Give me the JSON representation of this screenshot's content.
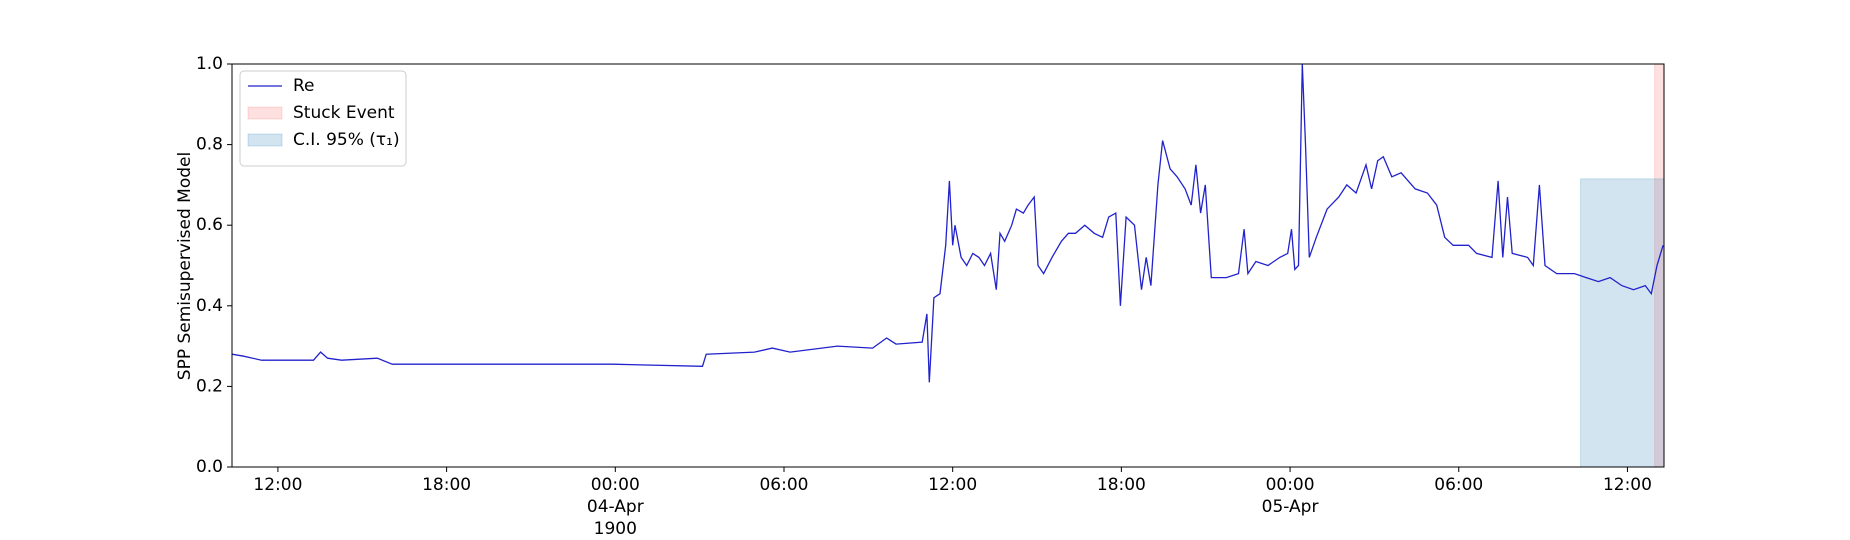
{
  "chart_data": {
    "type": "line",
    "ylabel": "SPP Semisupervised Model",
    "xlim": [
      "1900-04-03T10:22",
      "1900-04-05T13:18"
    ],
    "ylim": [
      0,
      1
    ],
    "xticks": [
      {
        "value": "1900-04-03T12:00",
        "label": "12:00"
      },
      {
        "value": "1900-04-03T18:00",
        "label": "18:00"
      },
      {
        "value": "1900-04-04T00:00",
        "label": "00:00\n04-Apr\n1900"
      },
      {
        "value": "1900-04-04T06:00",
        "label": "06:00"
      },
      {
        "value": "1900-04-04T12:00",
        "label": "12:00"
      },
      {
        "value": "1900-04-04T18:00",
        "label": "18:00"
      },
      {
        "value": "1900-04-05T00:00",
        "label": "00:00\n05-Apr"
      },
      {
        "value": "1900-04-05T06:00",
        "label": "06:00"
      },
      {
        "value": "1900-04-05T12:00",
        "label": "12:00"
      }
    ],
    "yticks": [
      {
        "value": 0,
        "label": "0.0"
      },
      0.2,
      0.4,
      0.6,
      0.8,
      {
        "value": 1,
        "label": "1.0"
      }
    ],
    "legend": "upper left",
    "series": [
      {
        "name": "Re",
        "color": "#2222cc",
        "x": [
          "1900-04-03T10:22",
          "1900-04-03T10:47",
          "1900-04-03T11:25",
          "1900-04-03T13:16",
          "1900-04-03T13:31",
          "1900-04-03T13:46",
          "1900-04-03T14:16",
          "1900-04-03T15:32",
          "1900-04-03T16:04",
          "1900-04-03T19:43",
          "1900-04-03T23:55",
          "1900-04-04T03:06",
          "1900-04-04T03:14",
          "1900-04-04T04:57",
          "1900-04-04T05:35",
          "1900-04-04T06:13",
          "1900-04-04T07:54",
          "1900-04-04T09:09",
          "1900-04-04T09:39",
          "1900-04-04T09:59",
          "1900-04-04T10:55",
          "1900-04-04T11:05",
          "1900-04-04T11:10",
          "1900-04-04T11:20",
          "1900-04-04T11:33",
          "1900-04-04T11:45",
          "1900-04-04T11:53",
          "1900-04-04T12:00",
          "1900-04-04T12:05",
          "1900-04-04T12:18",
          "1900-04-04T12:30",
          "1900-04-04T12:43",
          "1900-04-04T12:56",
          "1900-04-04T13:08",
          "1900-04-04T13:21",
          "1900-04-04T13:33",
          "1900-04-04T13:41",
          "1900-04-04T13:51",
          "1900-04-04T14:06",
          "1900-04-04T14:16",
          "1900-04-04T14:31",
          "1900-04-04T14:41",
          "1900-04-04T14:54",
          "1900-04-04T15:02",
          "1900-04-04T15:14",
          "1900-04-04T15:32",
          "1900-04-04T15:52",
          "1900-04-04T16:07",
          "1900-04-04T16:22",
          "1900-04-04T16:42",
          "1900-04-04T17:02",
          "1900-04-04T17:20",
          "1900-04-04T17:33",
          "1900-04-04T17:48",
          "1900-04-04T17:58",
          "1900-04-04T18:10",
          "1900-04-04T18:28",
          "1900-04-04T18:43",
          "1900-04-04T18:53",
          "1900-04-04T19:03",
          "1900-04-04T19:18",
          "1900-04-04T19:28",
          "1900-04-04T19:44",
          "1900-04-04T19:59",
          "1900-04-04T20:16",
          "1900-04-04T20:29",
          "1900-04-04T20:39",
          "1900-04-04T20:49",
          "1900-04-04T20:59",
          "1900-04-04T21:12",
          "1900-04-04T21:44",
          "1900-04-04T22:10",
          "1900-04-04T22:22",
          "1900-04-04T22:30",
          "1900-04-04T22:47",
          "1900-04-04T23:13",
          "1900-04-04T23:38",
          "1900-04-04T23:55",
          "1900-04-05T00:03",
          "1900-04-05T00:10",
          "1900-04-05T00:18",
          "1900-04-05T00:26",
          "1900-04-05T00:33",
          "1900-04-05T00:41",
          "1900-04-05T00:56",
          "1900-04-05T01:19",
          "1900-04-05T01:44",
          "1900-04-05T02:01",
          "1900-04-05T02:21",
          "1900-04-05T02:42",
          "1900-04-05T02:54",
          "1900-04-05T03:07",
          "1900-04-05T03:19",
          "1900-04-05T03:37",
          "1900-04-05T03:57",
          "1900-04-05T04:27",
          "1900-04-05T04:53",
          "1900-04-05T05:13",
          "1900-04-05T05:30",
          "1900-04-05T05:48",
          "1900-04-05T06:21",
          "1900-04-05T06:38",
          "1900-04-05T07:11",
          "1900-04-05T07:24",
          "1900-04-05T07:34",
          "1900-04-05T07:44",
          "1900-04-05T07:54",
          "1900-04-05T08:27",
          "1900-04-05T08:39",
          "1900-04-05T08:52",
          "1900-04-05T09:04",
          "1900-04-05T09:29",
          "1900-04-05T10:07",
          "1900-04-05T10:32",
          "1900-04-05T10:58",
          "1900-04-05T11:23",
          "1900-04-05T11:48",
          "1900-04-05T12:13",
          "1900-04-05T12:38",
          "1900-04-05T12:51",
          "1900-04-05T13:03",
          "1900-04-05T13:16"
        ],
        "values": [
          0.28,
          0.275,
          0.265,
          0.265,
          0.285,
          0.27,
          0.265,
          0.27,
          0.255,
          0.255,
          0.255,
          0.25,
          0.28,
          0.285,
          0.295,
          0.285,
          0.3,
          0.295,
          0.32,
          0.305,
          0.31,
          0.38,
          0.21,
          0.42,
          0.43,
          0.55,
          0.71,
          0.55,
          0.6,
          0.52,
          0.5,
          0.53,
          0.52,
          0.5,
          0.53,
          0.44,
          0.58,
          0.56,
          0.6,
          0.64,
          0.63,
          0.65,
          0.67,
          0.5,
          0.48,
          0.52,
          0.56,
          0.58,
          0.58,
          0.6,
          0.58,
          0.57,
          0.62,
          0.63,
          0.4,
          0.62,
          0.6,
          0.44,
          0.52,
          0.45,
          0.7,
          0.81,
          0.74,
          0.72,
          0.69,
          0.65,
          0.75,
          0.63,
          0.7,
          0.47,
          0.47,
          0.48,
          0.59,
          0.48,
          0.51,
          0.5,
          0.52,
          0.53,
          0.59,
          0.49,
          0.5,
          1.0,
          0.8,
          0.52,
          0.57,
          0.64,
          0.67,
          0.7,
          0.68,
          0.75,
          0.69,
          0.76,
          0.77,
          0.72,
          0.73,
          0.69,
          0.68,
          0.65,
          0.57,
          0.55,
          0.55,
          0.53,
          0.52,
          0.71,
          0.52,
          0.67,
          0.53,
          0.52,
          0.5,
          0.7,
          0.5,
          0.48,
          0.48,
          0.47,
          0.46,
          0.47,
          0.45,
          0.44,
          0.45,
          0.43,
          0.5,
          0.55
        ]
      }
    ],
    "spans": [
      {
        "name": "Stuck Event",
        "color": "#ff0000",
        "alpha": 0.12,
        "x_range": [
          "1900-04-05T12:58",
          "1900-04-05T13:18"
        ]
      },
      {
        "name": "C.I. 95% (τ₁)",
        "color": "#1f77b4",
        "alpha": 0.2,
        "x_range": [
          "1900-04-05T10:20",
          "1900-04-05T13:18"
        ],
        "y_range": [
          0,
          0.715
        ]
      }
    ]
  }
}
